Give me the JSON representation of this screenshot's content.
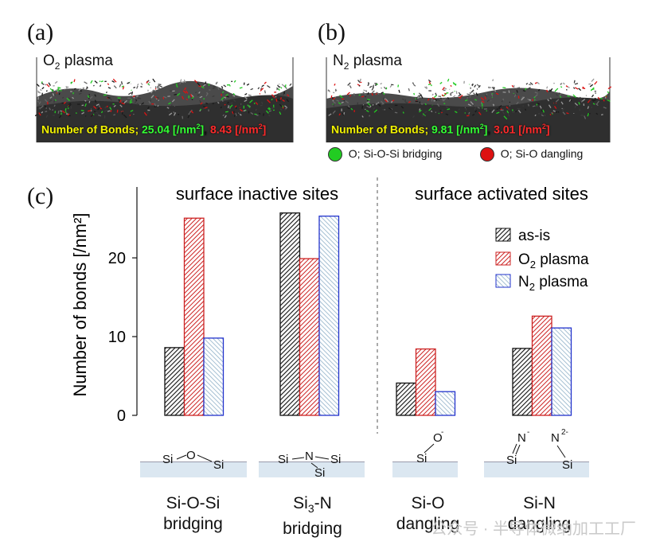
{
  "panels": {
    "a": {
      "label": "(a)",
      "title_main": "O",
      "title_sub": "2",
      "title_rest": " plasma",
      "bonds_prefix": "Number of Bonds; ",
      "bridging_value": "25.04 [/nm",
      "bridging_sup": "2",
      "bridging_close": "]",
      "dangling_value": "8.43 [/nm",
      "dangling_sup": "2",
      "dangling_close": "]"
    },
    "b": {
      "label": "(b)",
      "title_main": "N",
      "title_sub": "2",
      "title_rest": " plasma",
      "bonds_prefix": "Number of Bonds; ",
      "bridging_value": "9.81 [/nm",
      "bridging_sup": "2",
      "bridging_close": "]",
      "dangling_value": "3.01 [/nm",
      "dangling_sup": "2",
      "dangling_close": "]"
    },
    "c": {
      "label": "(c)"
    }
  },
  "sim_legend": {
    "bridging": "O; Si-O-Si bridging",
    "dangling": "O; Si-O dangling"
  },
  "colors": {
    "bridging_dot": "#22cc22",
    "dangling_dot": "#dd1111",
    "as_is": "#111111",
    "o2": "#cc2222",
    "n2": "#2233cc",
    "text_yellow": "#f2f200",
    "text_green": "#33ff33",
    "text_red": "#ff2a2a"
  },
  "chart_data": {
    "type": "bar",
    "ylabel": "Number of bonds [/nm²]",
    "ylim": [
      0,
      29
    ],
    "yticks": [
      0,
      10,
      20
    ],
    "groups": [
      {
        "title": "surface inactive sites",
        "categories": [
          "Si-O-Si bridging",
          "Si3-N bridging"
        ]
      },
      {
        "title": "surface activated sites",
        "categories": [
          "Si-O dangling",
          "Si-N dangling"
        ]
      }
    ],
    "categories": [
      "Si-O-Si bridging",
      "Si3-N bridging",
      "Si-O dangling",
      "Si-N dangling"
    ],
    "series": [
      {
        "name": "as-is",
        "values": [
          8.6,
          25.7,
          4.1,
          8.5
        ]
      },
      {
        "name": "O2 plasma",
        "values": [
          25.04,
          19.9,
          8.43,
          12.6
        ]
      },
      {
        "name": "N2 plasma",
        "values": [
          9.81,
          25.3,
          3.01,
          11.1
        ]
      }
    ],
    "legend": {
      "as_is": "as-is",
      "o2_main": "O",
      "o2_sub": "2",
      "o2_rest": " plasma",
      "n2_main": "N",
      "n2_sub": "2",
      "n2_rest": " plasma",
      "position": "top-right"
    }
  },
  "structures": {
    "s1": {
      "a": "Si",
      "b": "O",
      "c": "Si"
    },
    "s2": {
      "a": "Si",
      "b": "N",
      "c": "Si",
      "d": "Si"
    },
    "s3": {
      "a": "O",
      "a_sup": "-",
      "b": "Si"
    },
    "s4": {
      "a": "N",
      "a_sup": "-",
      "b": "Si",
      "c": "N",
      "c_sup": "2-",
      "d": "Si"
    }
  },
  "category_labels": {
    "c1_l1": "Si-O-Si",
    "c1_l2": "bridging",
    "c2_l1a": "Si",
    "c2_l1sub": "3",
    "c2_l1b": "-N",
    "c2_l2": "bridging",
    "c3_l1": "Si-O",
    "c3_l2": "dangling",
    "c4_l1": "Si-N",
    "c4_l2": "dangling"
  },
  "watermark": "公众号 · 半导体微纳加工工厂"
}
